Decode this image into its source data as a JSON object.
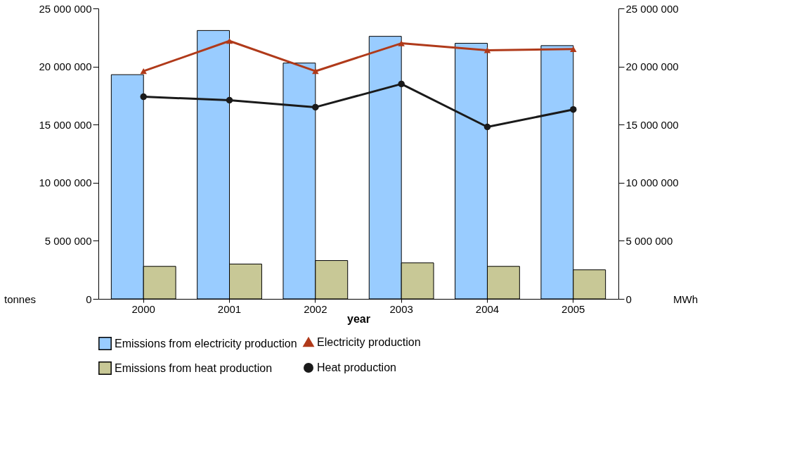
{
  "chart_data": {
    "type": "bar",
    "xlabel": "year",
    "ylabel": "tonnes",
    "y2label": "MWh",
    "categories": [
      "2000",
      "2001",
      "2002",
      "2003",
      "2004",
      "2005"
    ],
    "series": [
      {
        "name": "Emissions from electricity production",
        "color": "#99ccff",
        "values": [
          19300000,
          23100000,
          20300000,
          22600000,
          22000000,
          21800000
        ]
      },
      {
        "name": "Emissions from heat production",
        "color": "#c8c896",
        "values": [
          2800000,
          3000000,
          3300000,
          3100000,
          2800000,
          2500000
        ]
      },
      {
        "name": "Electricity production",
        "type": "line",
        "axis": "y2",
        "color": "#b03a1a",
        "marker": "triangle",
        "values": [
          19600000,
          22200000,
          19600000,
          22000000,
          21400000,
          21500000
        ]
      },
      {
        "name": "Heat production",
        "type": "line",
        "axis": "y2",
        "color": "#1a1a1a",
        "marker": "circle",
        "values": [
          17400000,
          17100000,
          16500000,
          18500000,
          14800000,
          16300000
        ]
      }
    ],
    "ylim": [
      0,
      25000000
    ],
    "yticks": [
      {
        "value": 0,
        "label": "0"
      },
      {
        "value": 5000000,
        "label": "5 000 000"
      },
      {
        "value": 10000000,
        "label": "10 000 000"
      },
      {
        "value": 15000000,
        "label": "15 000 000"
      },
      {
        "value": 20000000,
        "label": "20 000 000"
      },
      {
        "value": 25000000,
        "label": "25 000 000"
      }
    ],
    "y2lim": [
      0,
      25000000
    ],
    "y2ticks": [
      {
        "value": 0,
        "label": "0"
      },
      {
        "value": 5000000,
        "label": "5 000 000"
      },
      {
        "value": 10000000,
        "label": "10 000 000"
      },
      {
        "value": 15000000,
        "label": "15 000 000"
      },
      {
        "value": 20000000,
        "label": "20 000 000"
      },
      {
        "value": 25000000,
        "label": "25 000 000"
      }
    ],
    "grid": false,
    "legend": "bottom"
  }
}
